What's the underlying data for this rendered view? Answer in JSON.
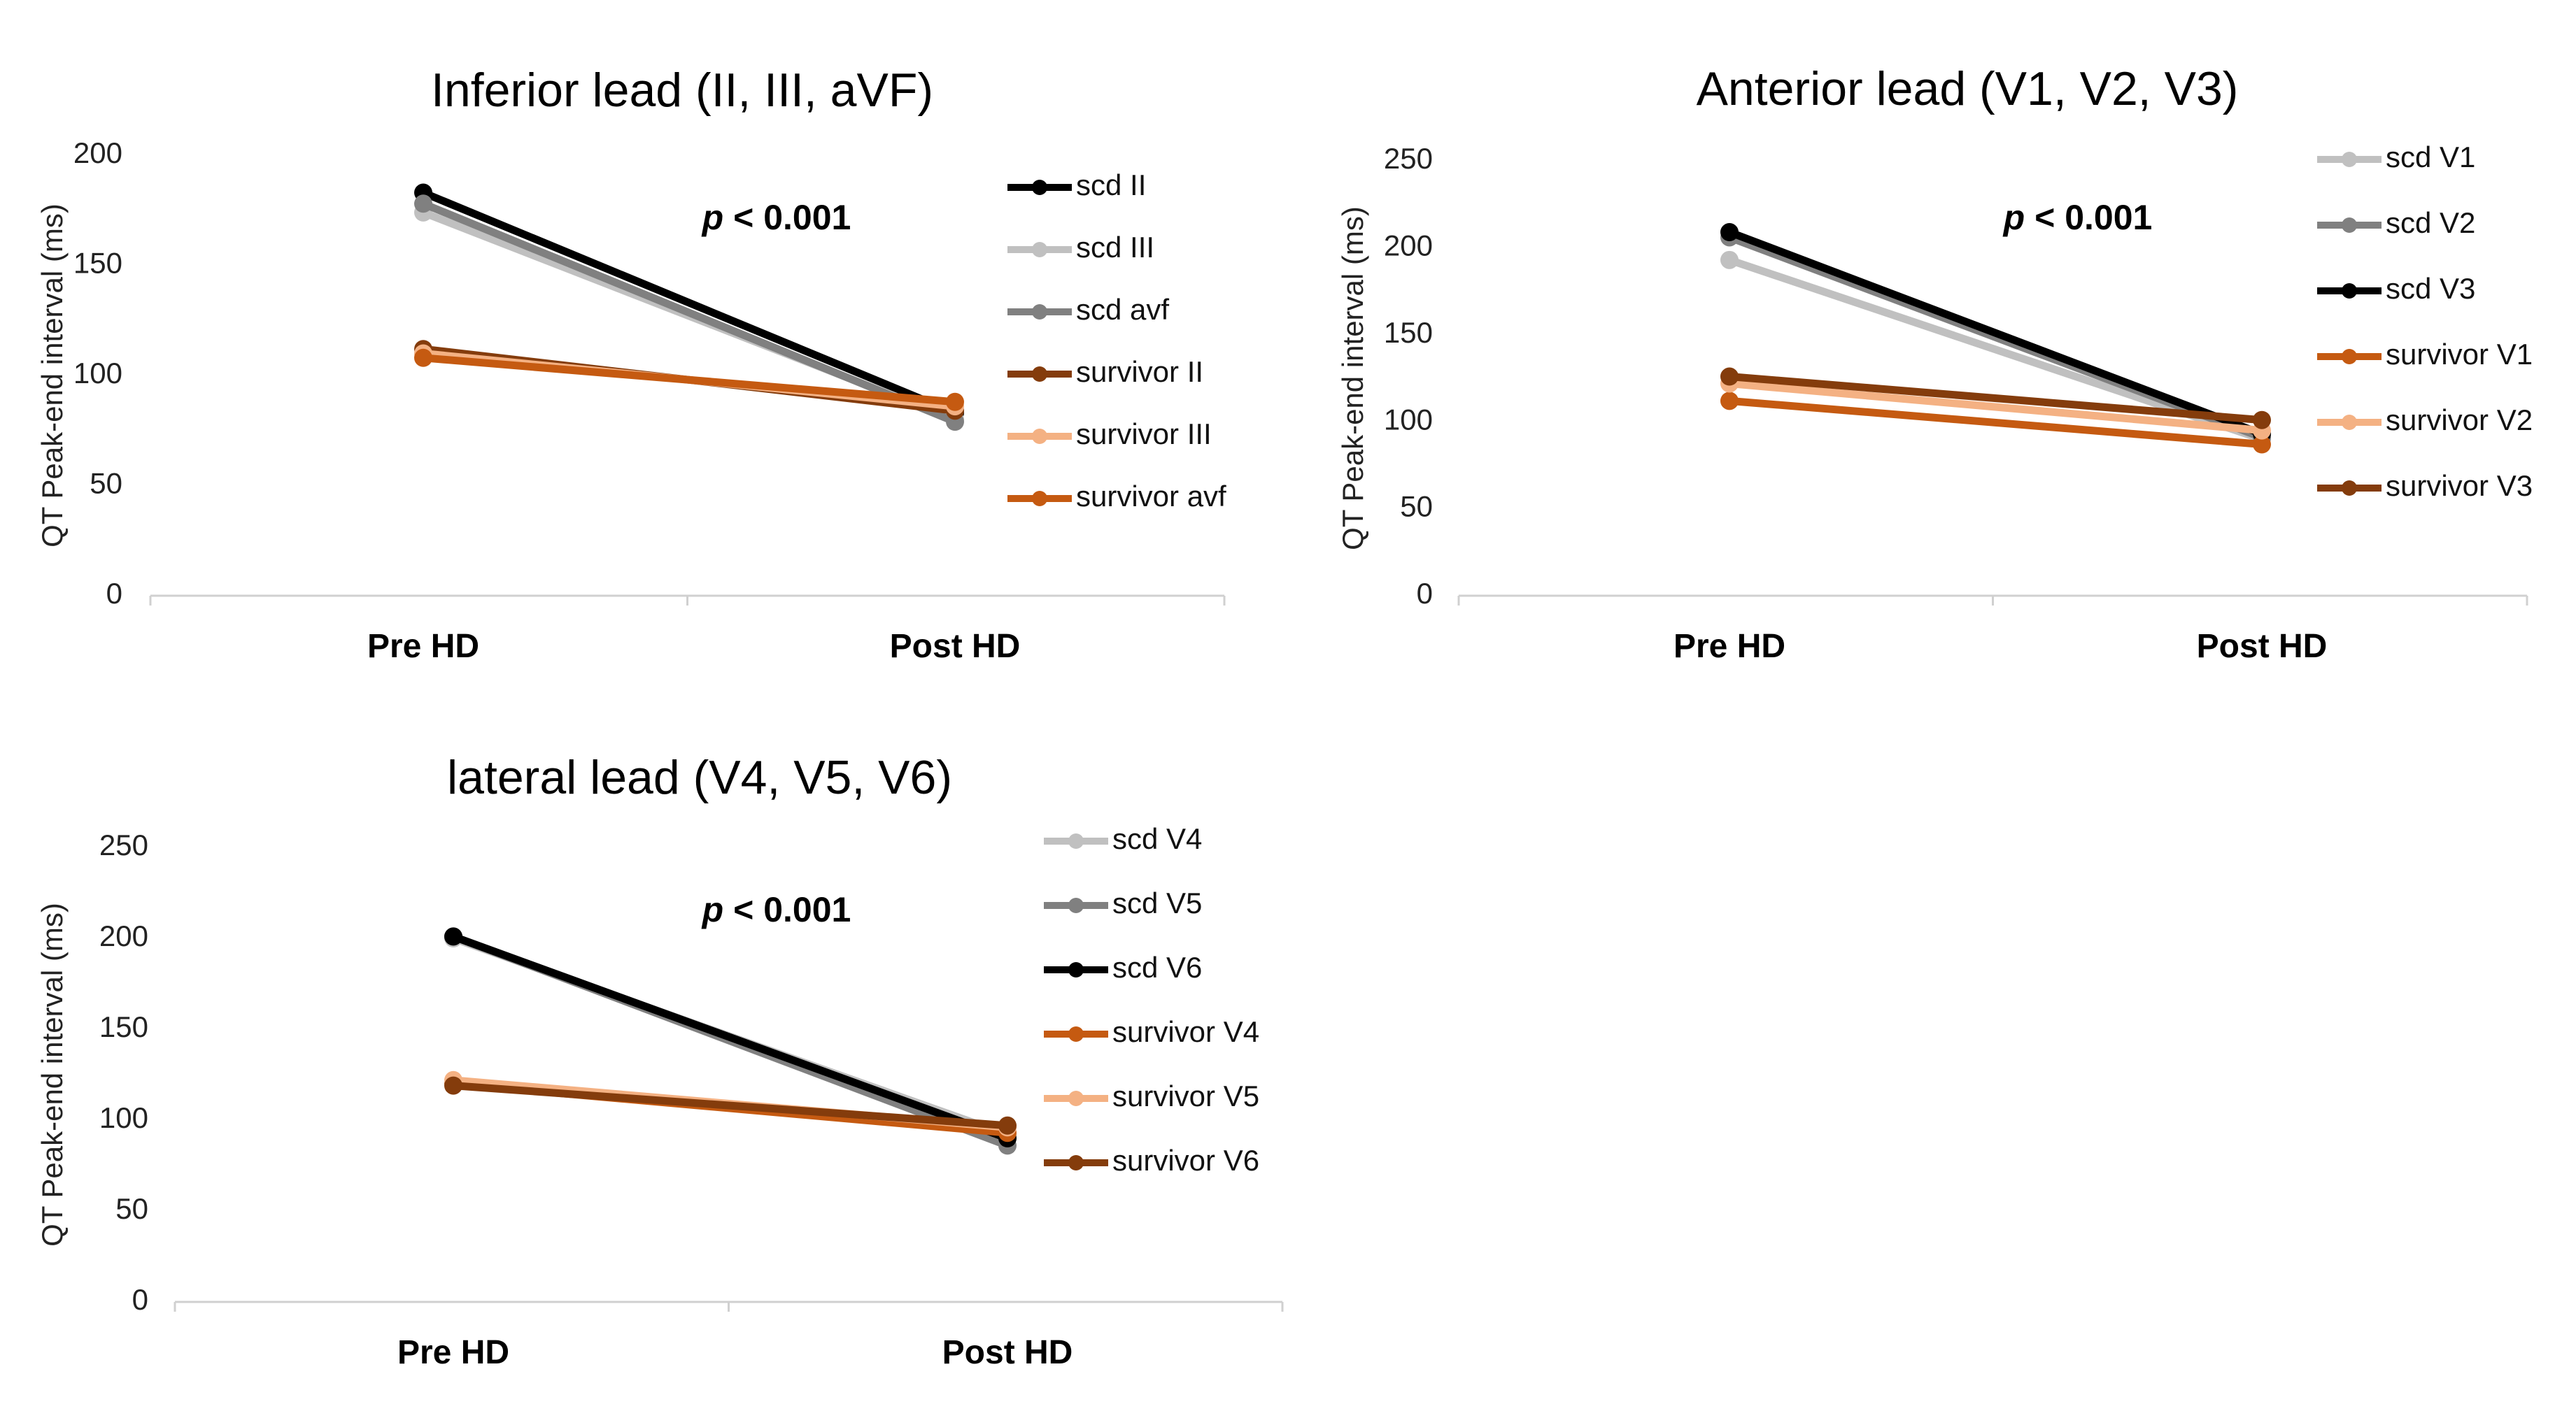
{
  "chart_data": [
    {
      "type": "line",
      "title": "Inferior lead (II, III, aVF)",
      "ylabel": "QT Peak-end interval  (ms)",
      "categories": [
        "Pre HD",
        "Post HD"
      ],
      "ylim": [
        0,
        200
      ],
      "yticks": [
        0,
        50,
        100,
        150,
        200
      ],
      "annotation": {
        "italic": "p",
        "text": " < 0.001"
      },
      "legend_position": "right",
      "series": [
        {
          "name": "scd II",
          "color": "#000000",
          "values": [
            183,
            83
          ]
        },
        {
          "name": "scd III",
          "color": "#c0c0c0",
          "values": [
            174,
            80
          ]
        },
        {
          "name": "scd avf",
          "color": "#808080",
          "values": [
            178,
            79
          ]
        },
        {
          "name": "survivor II",
          "color": "#843c0c",
          "values": [
            112,
            84
          ]
        },
        {
          "name": "survivor III",
          "color": "#f4b183",
          "values": [
            110,
            86
          ]
        },
        {
          "name": "survivor avf",
          "color": "#c55a11",
          "values": [
            108,
            88
          ]
        }
      ]
    },
    {
      "type": "line",
      "title": "Anterior lead (V1, V2, V3)",
      "ylabel": "QT Peak-end  interval  (ms)",
      "categories": [
        "Pre HD",
        "Post HD"
      ],
      "ylim": [
        0,
        250
      ],
      "yticks": [
        0,
        50,
        100,
        150,
        200,
        250
      ],
      "annotation": {
        "italic": "p",
        "text": " < 0.001"
      },
      "legend_position": "right",
      "series": [
        {
          "name": "scd V1",
          "color": "#c0c0c0",
          "values": [
            193,
            90
          ]
        },
        {
          "name": "scd V2",
          "color": "#808080",
          "values": [
            206,
            91
          ]
        },
        {
          "name": "scd V3",
          "color": "#000000",
          "values": [
            209,
            93
          ]
        },
        {
          "name": "survivor V1",
          "color": "#c55a11",
          "values": [
            112,
            87
          ]
        },
        {
          "name": "survivor V2",
          "color": "#f4b183",
          "values": [
            122,
            95
          ]
        },
        {
          "name": "survivor V3",
          "color": "#843c0c",
          "values": [
            126,
            101
          ]
        }
      ]
    },
    {
      "type": "line",
      "title": "lateral lead (V4, V5, V6)",
      "ylabel": "QT Peak-end interval  (ms)",
      "categories": [
        "Pre HD",
        "Post HD"
      ],
      "ylim": [
        0,
        250
      ],
      "yticks": [
        0,
        50,
        100,
        150,
        200,
        250
      ],
      "annotation": {
        "italic": "p",
        "text": " < 0.001"
      },
      "legend_position": "right",
      "series": [
        {
          "name": "scd V4",
          "color": "#c0c0c0",
          "values": [
            200,
            92
          ]
        },
        {
          "name": "scd V5",
          "color": "#808080",
          "values": [
            201,
            86
          ]
        },
        {
          "name": "scd V6",
          "color": "#000000",
          "values": [
            201,
            90
          ]
        },
        {
          "name": "survivor V4",
          "color": "#c55a11",
          "values": [
            120,
            93
          ]
        },
        {
          "name": "survivor V5",
          "color": "#f4b183",
          "values": [
            122,
            96
          ]
        },
        {
          "name": "survivor V6",
          "color": "#843c0c",
          "values": [
            119,
            97
          ]
        }
      ]
    }
  ]
}
